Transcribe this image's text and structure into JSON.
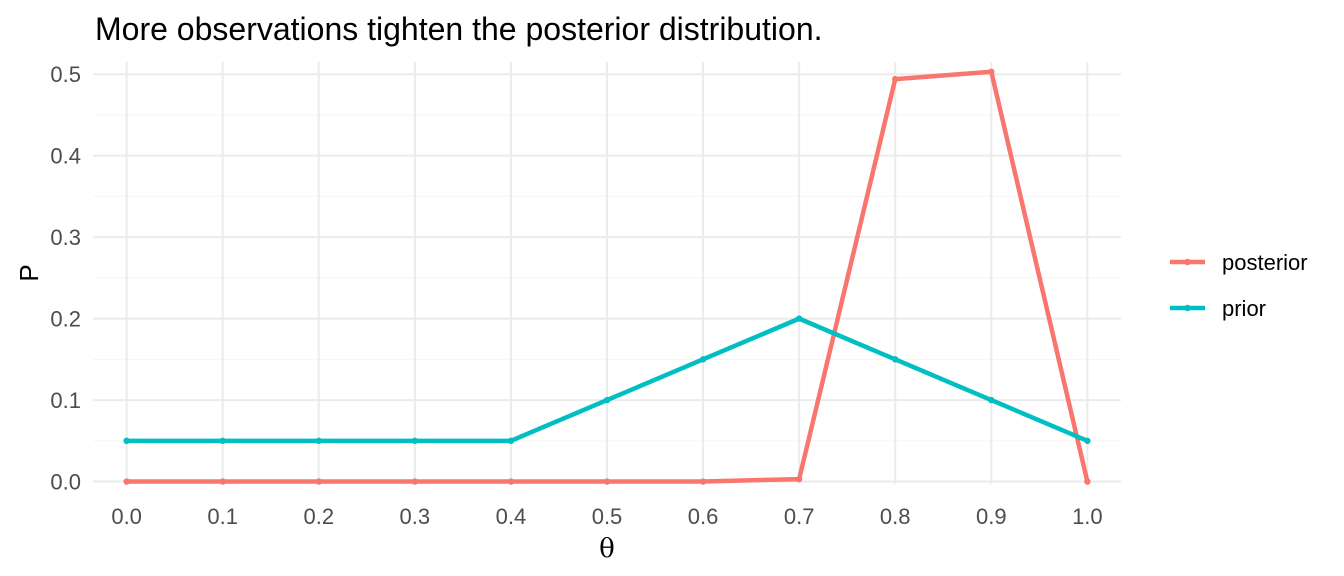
{
  "chart_data": {
    "type": "line",
    "title": "More observations tighten the posterior distribution.",
    "xlabel": "θ",
    "ylabel": "P",
    "x": [
      0.0,
      0.1,
      0.2,
      0.3,
      0.4,
      0.5,
      0.6,
      0.7,
      0.8,
      0.9,
      1.0
    ],
    "x_tick_labels": [
      "0.0",
      "0.1",
      "0.2",
      "0.3",
      "0.4",
      "0.5",
      "0.6",
      "0.7",
      "0.8",
      "0.9",
      "1.0"
    ],
    "y_tick_labels": [
      "0.0",
      "0.1",
      "0.2",
      "0.3",
      "0.4",
      "0.5"
    ],
    "xlim": [
      -0.035,
      1.035
    ],
    "ylim": [
      -0.003,
      0.515
    ],
    "grid": true,
    "legend_position": "right",
    "series": [
      {
        "name": "posterior",
        "color": "#F8766D",
        "values": [
          0.0,
          0.0,
          0.0,
          0.0,
          0.0,
          0.0,
          0.0,
          0.003,
          0.494,
          0.503,
          0.0
        ]
      },
      {
        "name": "prior",
        "color": "#00BFC4",
        "values": [
          0.05,
          0.05,
          0.05,
          0.05,
          0.05,
          0.1,
          0.15,
          0.2,
          0.15,
          0.1,
          0.05
        ]
      }
    ]
  }
}
